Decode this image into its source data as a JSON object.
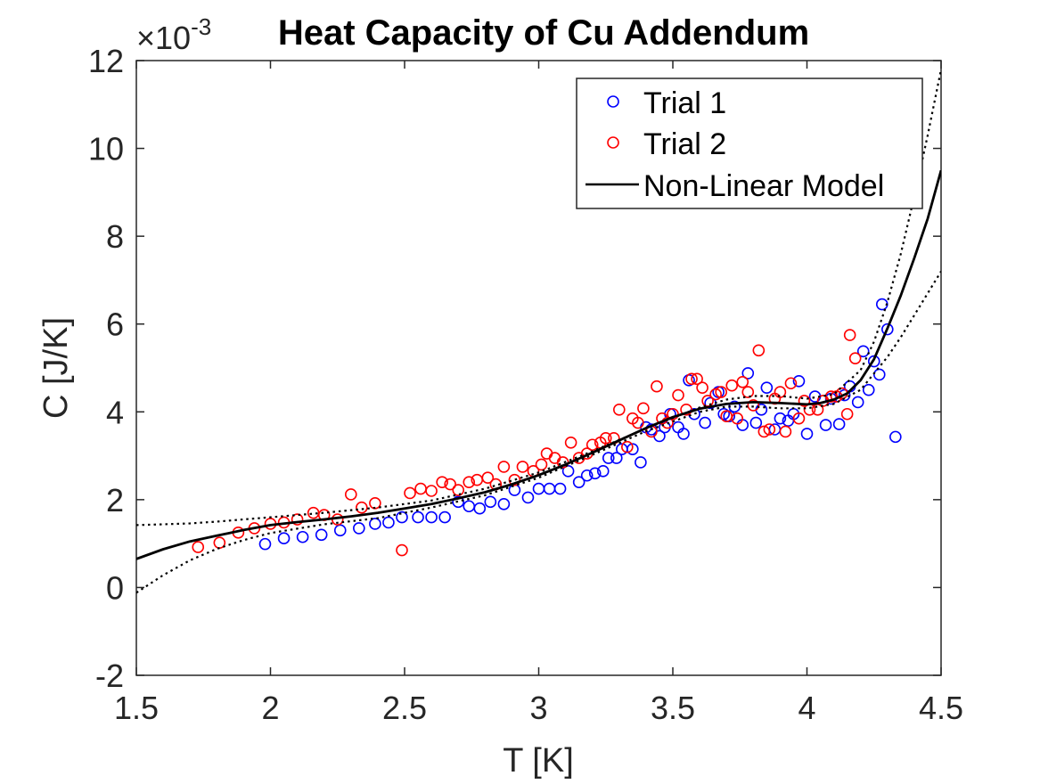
{
  "chart_data": {
    "type": "scatter",
    "title": "Heat Capacity of Cu Addendum",
    "xlabel": "T [K]",
    "ylabel": "C [J/K]",
    "y_exponent_base": "×10",
    "y_exponent_power": "-3",
    "xlim": [
      1.5,
      4.5
    ],
    "ylim": [
      -2,
      12
    ],
    "x_ticks": [
      1.5,
      2,
      2.5,
      3,
      3.5,
      4,
      4.5
    ],
    "x_tick_labels": [
      "1.5",
      "2",
      "2.5",
      "3",
      "3.5",
      "4",
      "4.5"
    ],
    "y_ticks": [
      -2,
      0,
      2,
      4,
      6,
      8,
      10,
      12
    ],
    "y_tick_labels": [
      "-2",
      "0",
      "2",
      "4",
      "6",
      "8",
      "10",
      "12"
    ],
    "grid": false,
    "legend_position": "top-right",
    "legend": [
      "Trial 1",
      "Trial 2",
      "Non-Linear Model"
    ],
    "colors": {
      "trial1": "#0000ff",
      "trial2": "#ff0000",
      "model": "#000000",
      "axis": "#262626"
    },
    "series": [
      {
        "name": "Trial 1",
        "kind": "scatter",
        "marker": "open-circle",
        "points": [
          [
            1.98,
            0.99
          ],
          [
            2.05,
            1.12
          ],
          [
            2.12,
            1.15
          ],
          [
            2.19,
            1.2
          ],
          [
            2.26,
            1.3
          ],
          [
            2.33,
            1.35
          ],
          [
            2.39,
            1.45
          ],
          [
            2.44,
            1.48
          ],
          [
            2.49,
            1.6
          ],
          [
            2.55,
            1.6
          ],
          [
            2.6,
            1.6
          ],
          [
            2.65,
            1.6
          ],
          [
            2.7,
            1.95
          ],
          [
            2.74,
            1.85
          ],
          [
            2.78,
            1.8
          ],
          [
            2.82,
            1.95
          ],
          [
            2.87,
            1.9
          ],
          [
            2.91,
            2.22
          ],
          [
            2.96,
            2.05
          ],
          [
            3.0,
            2.25
          ],
          [
            3.04,
            2.25
          ],
          [
            3.08,
            2.25
          ],
          [
            3.11,
            2.65
          ],
          [
            3.15,
            2.4
          ],
          [
            3.18,
            2.55
          ],
          [
            3.21,
            2.6
          ],
          [
            3.24,
            2.65
          ],
          [
            3.26,
            2.95
          ],
          [
            3.29,
            2.95
          ],
          [
            3.31,
            3.15
          ],
          [
            3.35,
            3.15
          ],
          [
            3.38,
            2.85
          ],
          [
            3.4,
            3.65
          ],
          [
            3.42,
            3.6
          ],
          [
            3.45,
            3.45
          ],
          [
            3.47,
            3.65
          ],
          [
            3.49,
            3.95
          ],
          [
            3.52,
            3.65
          ],
          [
            3.54,
            3.5
          ],
          [
            3.56,
            4.72
          ],
          [
            3.58,
            3.95
          ],
          [
            3.62,
            3.75
          ],
          [
            3.64,
            4.2
          ],
          [
            3.67,
            4.45
          ],
          [
            3.69,
            3.95
          ],
          [
            3.71,
            3.9
          ],
          [
            3.73,
            4.12
          ],
          [
            3.76,
            3.7
          ],
          [
            3.78,
            4.88
          ],
          [
            3.81,
            3.75
          ],
          [
            3.83,
            4.05
          ],
          [
            3.85,
            4.55
          ],
          [
            3.88,
            3.6
          ],
          [
            3.9,
            3.85
          ],
          [
            3.93,
            3.8
          ],
          [
            3.95,
            3.95
          ],
          [
            3.97,
            4.7
          ],
          [
            4.0,
            3.5
          ],
          [
            4.03,
            4.35
          ],
          [
            4.07,
            3.7
          ],
          [
            4.09,
            4.3
          ],
          [
            4.12,
            3.72
          ],
          [
            4.14,
            4.38
          ],
          [
            4.16,
            4.58
          ],
          [
            4.19,
            4.22
          ],
          [
            4.21,
            5.38
          ],
          [
            4.23,
            4.5
          ],
          [
            4.25,
            5.15
          ],
          [
            4.27,
            4.85
          ],
          [
            4.28,
            6.45
          ],
          [
            4.3,
            5.88
          ],
          [
            4.33,
            3.43
          ]
        ]
      },
      {
        "name": "Trial 2",
        "kind": "scatter",
        "marker": "open-circle",
        "points": [
          [
            1.73,
            0.92
          ],
          [
            1.81,
            1.02
          ],
          [
            1.88,
            1.25
          ],
          [
            1.94,
            1.35
          ],
          [
            2.0,
            1.45
          ],
          [
            2.05,
            1.48
          ],
          [
            2.1,
            1.55
          ],
          [
            2.16,
            1.7
          ],
          [
            2.2,
            1.65
          ],
          [
            2.25,
            1.55
          ],
          [
            2.3,
            2.12
          ],
          [
            2.34,
            1.82
          ],
          [
            2.39,
            1.92
          ],
          [
            2.49,
            0.85
          ],
          [
            2.52,
            2.15
          ],
          [
            2.56,
            2.25
          ],
          [
            2.6,
            2.2
          ],
          [
            2.64,
            2.4
          ],
          [
            2.67,
            2.35
          ],
          [
            2.7,
            2.22
          ],
          [
            2.74,
            2.4
          ],
          [
            2.77,
            2.45
          ],
          [
            2.81,
            2.5
          ],
          [
            2.84,
            2.35
          ],
          [
            2.87,
            2.75
          ],
          [
            2.91,
            2.45
          ],
          [
            2.94,
            2.75
          ],
          [
            2.98,
            2.65
          ],
          [
            3.01,
            2.8
          ],
          [
            3.03,
            3.05
          ],
          [
            3.06,
            2.95
          ],
          [
            3.09,
            2.85
          ],
          [
            3.12,
            3.3
          ],
          [
            3.15,
            2.95
          ],
          [
            3.18,
            3.05
          ],
          [
            3.2,
            3.25
          ],
          [
            3.23,
            3.3
          ],
          [
            3.25,
            3.4
          ],
          [
            3.28,
            3.4
          ],
          [
            3.3,
            4.05
          ],
          [
            3.33,
            3.2
          ],
          [
            3.35,
            3.85
          ],
          [
            3.37,
            3.75
          ],
          [
            3.39,
            4.08
          ],
          [
            3.42,
            3.55
          ],
          [
            3.44,
            4.58
          ],
          [
            3.46,
            3.85
          ],
          [
            3.48,
            3.75
          ],
          [
            3.5,
            3.95
          ],
          [
            3.52,
            4.38
          ],
          [
            3.55,
            4.05
          ],
          [
            3.57,
            4.75
          ],
          [
            3.59,
            4.75
          ],
          [
            3.61,
            4.55
          ],
          [
            3.63,
            4.25
          ],
          [
            3.66,
            4.4
          ],
          [
            3.68,
            4.45
          ],
          [
            3.7,
            3.9
          ],
          [
            3.72,
            4.6
          ],
          [
            3.74,
            3.85
          ],
          [
            3.76,
            4.68
          ],
          [
            3.78,
            4.45
          ],
          [
            3.8,
            4.15
          ],
          [
            3.82,
            5.4
          ],
          [
            3.84,
            3.55
          ],
          [
            3.86,
            3.6
          ],
          [
            3.88,
            4.3
          ],
          [
            3.9,
            4.45
          ],
          [
            3.92,
            3.55
          ],
          [
            3.94,
            4.65
          ],
          [
            3.97,
            3.85
          ],
          [
            3.99,
            4.25
          ],
          [
            4.01,
            4.05
          ],
          [
            4.04,
            4.05
          ],
          [
            4.06,
            4.25
          ],
          [
            4.09,
            4.35
          ],
          [
            4.11,
            4.35
          ],
          [
            4.13,
            4.42
          ],
          [
            4.15,
            3.95
          ],
          [
            4.16,
            5.75
          ],
          [
            4.18,
            5.22
          ]
        ]
      },
      {
        "name": "Non-Linear Model",
        "kind": "line",
        "style": "solid",
        "points": [
          [
            1.5,
            0.65
          ],
          [
            1.6,
            0.87
          ],
          [
            1.7,
            1.05
          ],
          [
            1.8,
            1.18
          ],
          [
            1.9,
            1.31
          ],
          [
            2.0,
            1.42
          ],
          [
            2.1,
            1.49
          ],
          [
            2.2,
            1.55
          ],
          [
            2.3,
            1.62
          ],
          [
            2.4,
            1.7
          ],
          [
            2.5,
            1.8
          ],
          [
            2.6,
            1.9
          ],
          [
            2.7,
            2.03
          ],
          [
            2.8,
            2.17
          ],
          [
            2.9,
            2.35
          ],
          [
            3.0,
            2.56
          ],
          [
            3.1,
            2.8
          ],
          [
            3.2,
            3.07
          ],
          [
            3.3,
            3.35
          ],
          [
            3.4,
            3.63
          ],
          [
            3.5,
            3.88
          ],
          [
            3.6,
            4.07
          ],
          [
            3.7,
            4.18
          ],
          [
            3.8,
            4.22
          ],
          [
            3.9,
            4.2
          ],
          [
            4.0,
            4.17
          ],
          [
            4.05,
            4.2
          ],
          [
            4.1,
            4.28
          ],
          [
            4.15,
            4.42
          ],
          [
            4.2,
            4.72
          ],
          [
            4.25,
            5.2
          ],
          [
            4.3,
            5.9
          ],
          [
            4.35,
            6.65
          ],
          [
            4.4,
            7.5
          ],
          [
            4.45,
            8.4
          ],
          [
            4.5,
            9.5
          ]
        ]
      },
      {
        "kind": "line",
        "style": "dotted",
        "points": [
          [
            1.5,
            1.42
          ],
          [
            1.6,
            1.44
          ],
          [
            1.7,
            1.46
          ],
          [
            1.8,
            1.5
          ],
          [
            1.9,
            1.55
          ],
          [
            2.0,
            1.6
          ],
          [
            2.2,
            1.7
          ],
          [
            2.4,
            1.82
          ],
          [
            2.6,
            1.98
          ],
          [
            2.8,
            2.25
          ],
          [
            3.0,
            2.62
          ],
          [
            3.2,
            3.1
          ],
          [
            3.4,
            3.62
          ],
          [
            3.6,
            4.1
          ],
          [
            3.7,
            4.28
          ],
          [
            3.8,
            4.36
          ],
          [
            3.9,
            4.36
          ],
          [
            4.0,
            4.3
          ],
          [
            4.1,
            4.4
          ],
          [
            4.2,
            4.95
          ],
          [
            4.25,
            5.6
          ],
          [
            4.3,
            6.5
          ],
          [
            4.35,
            7.6
          ],
          [
            4.4,
            8.9
          ],
          [
            4.45,
            10.3
          ],
          [
            4.5,
            11.8
          ]
        ]
      },
      {
        "kind": "line",
        "style": "dotted",
        "points": [
          [
            1.5,
            -0.12
          ],
          [
            1.6,
            0.28
          ],
          [
            1.7,
            0.62
          ],
          [
            1.8,
            0.88
          ],
          [
            1.9,
            1.08
          ],
          [
            2.0,
            1.24
          ],
          [
            2.2,
            1.44
          ],
          [
            2.4,
            1.58
          ],
          [
            2.6,
            1.82
          ],
          [
            2.8,
            2.1
          ],
          [
            3.0,
            2.5
          ],
          [
            3.2,
            3.02
          ],
          [
            3.4,
            3.56
          ],
          [
            3.6,
            4.0
          ],
          [
            3.7,
            4.12
          ],
          [
            3.8,
            4.12
          ],
          [
            3.9,
            4.08
          ],
          [
            4.0,
            4.08
          ],
          [
            4.1,
            4.18
          ],
          [
            4.2,
            4.5
          ],
          [
            4.3,
            5.25
          ],
          [
            4.35,
            5.7
          ],
          [
            4.4,
            6.2
          ],
          [
            4.45,
            6.7
          ],
          [
            4.5,
            7.2
          ]
        ]
      }
    ]
  }
}
